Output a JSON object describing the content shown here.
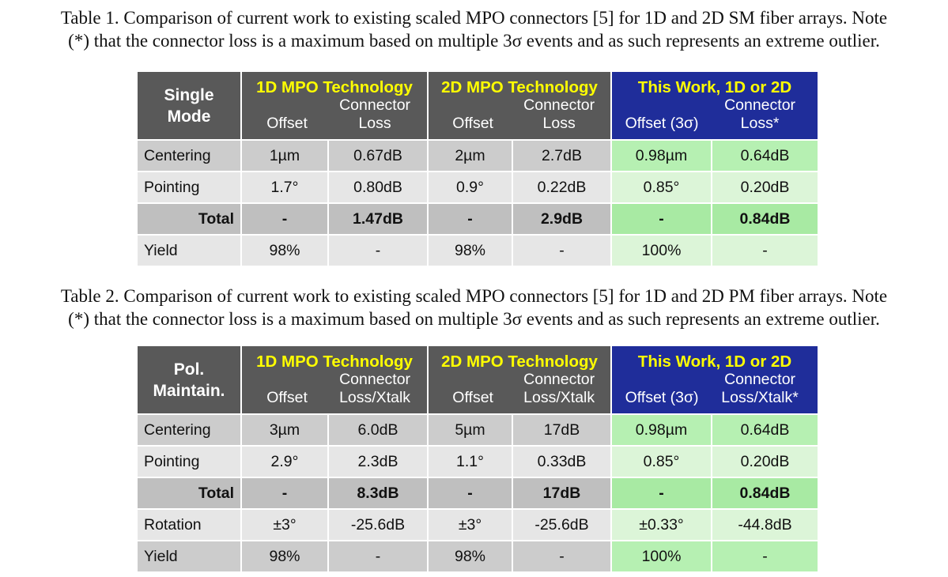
{
  "table1": {
    "caption_line1": "Table 1. Comparison of current work to existing scaled MPO connectors [5] for 1D and 2D SM fiber arrays.  Note",
    "caption_line2": "(*) that the connector loss is a maximum based on multiple 3σ events and as such represents an extreme outlier.",
    "corner_line1": "Single",
    "corner_line2": "Mode",
    "group1": "1D MPO Technology",
    "group2": "2D MPO Technology",
    "group3": "This Work, 1D or 2D",
    "g1_offset": "Offset",
    "g1_loss_line1": "Connector",
    "g1_loss_line2": "Loss",
    "g2_offset": "Offset",
    "g2_loss_line1": "Connector",
    "g2_loss_line2": "Loss",
    "g3_offset": "Offset (3σ)",
    "g3_loss_line1": "Connector",
    "g3_loss_line2": "Loss*",
    "rows": [
      {
        "label": "Centering",
        "v": [
          "1µm",
          "0.67dB",
          "2µm",
          "2.7dB",
          "0.98µm",
          "0.64dB"
        ]
      },
      {
        "label": "Pointing",
        "v": [
          "1.7°",
          "0.80dB",
          "0.9°",
          "0.22dB",
          "0.85°",
          "0.20dB"
        ]
      },
      {
        "label": "Total",
        "v": [
          "-",
          "1.47dB",
          "-",
          "2.9dB",
          "-",
          "0.84dB"
        ]
      },
      {
        "label": "Yield",
        "v": [
          "98%",
          "-",
          "98%",
          "-",
          "100%",
          "-"
        ]
      }
    ]
  },
  "table2": {
    "caption_line1": "Table 2. Comparison of current work to existing scaled MPO connectors [5] for 1D and 2D PM fiber arrays.  Note",
    "caption_line2": "(*) that the connector loss is a maximum based on multiple 3σ events and as such represents an extreme outlier.",
    "corner_line1": "Pol.",
    "corner_line2": "Maintain.",
    "group1": "1D MPO Technology",
    "group2": "2D MPO Technology",
    "group3": "This Work, 1D or 2D",
    "g1_offset": "Offset",
    "g1_loss_line1": "Connector",
    "g1_loss_line2": "Loss/Xtalk",
    "g2_offset": "Offset",
    "g2_loss_line1": "Connector",
    "g2_loss_line2": "Loss/Xtalk",
    "g3_offset": "Offset (3σ)",
    "g3_loss_line1": "Connector",
    "g3_loss_line2": "Loss/Xtalk*",
    "rows": [
      {
        "label": "Centering",
        "v": [
          "3µm",
          "6.0dB",
          "5µm",
          "17dB",
          "0.98µm",
          "0.64dB"
        ]
      },
      {
        "label": "Pointing",
        "v": [
          "2.9°",
          "2.3dB",
          "1.1°",
          "0.33dB",
          "0.85°",
          "0.20dB"
        ]
      },
      {
        "label": "Total",
        "v": [
          "-",
          "8.3dB",
          "-",
          "17dB",
          "-",
          "0.84dB"
        ]
      },
      {
        "label": "Rotation",
        "v": [
          "±3°",
          "-25.6dB",
          "±3°",
          "-25.6dB",
          "±0.33°",
          "-44.8dB"
        ]
      },
      {
        "label": "Yield",
        "v": [
          "98%",
          "-",
          "98%",
          "-",
          "100%",
          "-"
        ]
      }
    ]
  },
  "colors": {
    "header_gray": "#595959",
    "header_blue": "#1f2d9a",
    "group_title_yellow": "#ffff00",
    "row_gray_dark": "#cccccc",
    "row_gray_light": "#e6e6e6",
    "row_green_dark": "#b6f0b2",
    "row_green_light": "#dcf5d8"
  }
}
